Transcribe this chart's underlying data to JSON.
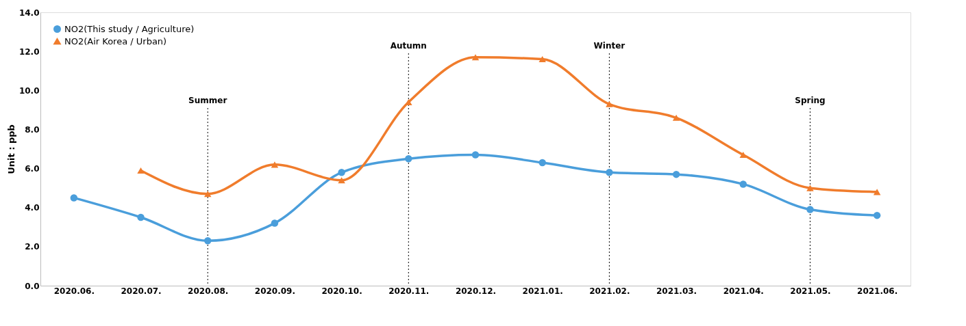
{
  "chart_data": {
    "type": "line",
    "ylabel": "Unit : ppb",
    "categories": [
      "2020.06.",
      "2020.07.",
      "2020.08.",
      "2020.09.",
      "2020.10.",
      "2020.11.",
      "2020.12.",
      "2021.01.",
      "2021.02.",
      "2021.03.",
      "2021.04.",
      "2021.05.",
      "2021.06."
    ],
    "series": [
      {
        "name": "NO2(This study / Agriculture)",
        "color": "#4a9edb",
        "marker": "circle",
        "values": [
          4.5,
          3.5,
          2.3,
          3.2,
          5.8,
          6.5,
          6.7,
          6.3,
          5.8,
          5.7,
          5.2,
          3.9,
          3.6
        ]
      },
      {
        "name": "NO2(Air Korea /  Urban)",
        "color": "#f07c2c",
        "marker": "triangle",
        "values": [
          null,
          5.9,
          4.7,
          6.2,
          5.4,
          9.4,
          11.7,
          11.6,
          9.3,
          8.6,
          6.7,
          5.0,
          4.8
        ]
      }
    ],
    "ylim": [
      0,
      14
    ],
    "yticks": [
      {
        "value": 0,
        "label": "0.0"
      },
      {
        "value": 2,
        "label": "2.0"
      },
      {
        "value": 4,
        "label": "4.0"
      },
      {
        "value": 6,
        "label": "6.0"
      },
      {
        "value": 8,
        "label": "8.0"
      },
      {
        "value": 10,
        "label": "10.0"
      },
      {
        "value": 12,
        "label": "12.0"
      },
      {
        "value": 14,
        "label": "14.0"
      }
    ],
    "ref_lines": [
      {
        "axis": "x",
        "value": "2020.08.",
        "label": "Summer",
        "color": "#000000",
        "line_style": "dotted"
      },
      {
        "axis": "x",
        "value": "2020.11.",
        "label": "Autumn",
        "color": "#000000",
        "line_style": "dotted"
      },
      {
        "axis": "x",
        "value": "2021.02.",
        "label": "Winter",
        "color": "#000000",
        "line_style": "dotted"
      },
      {
        "axis": "x",
        "value": "2021.05.",
        "label": "Spring",
        "color": "#000000",
        "line_style": "dotted"
      }
    ],
    "grid": false,
    "legend": "top left",
    "line_style": "solid"
  }
}
